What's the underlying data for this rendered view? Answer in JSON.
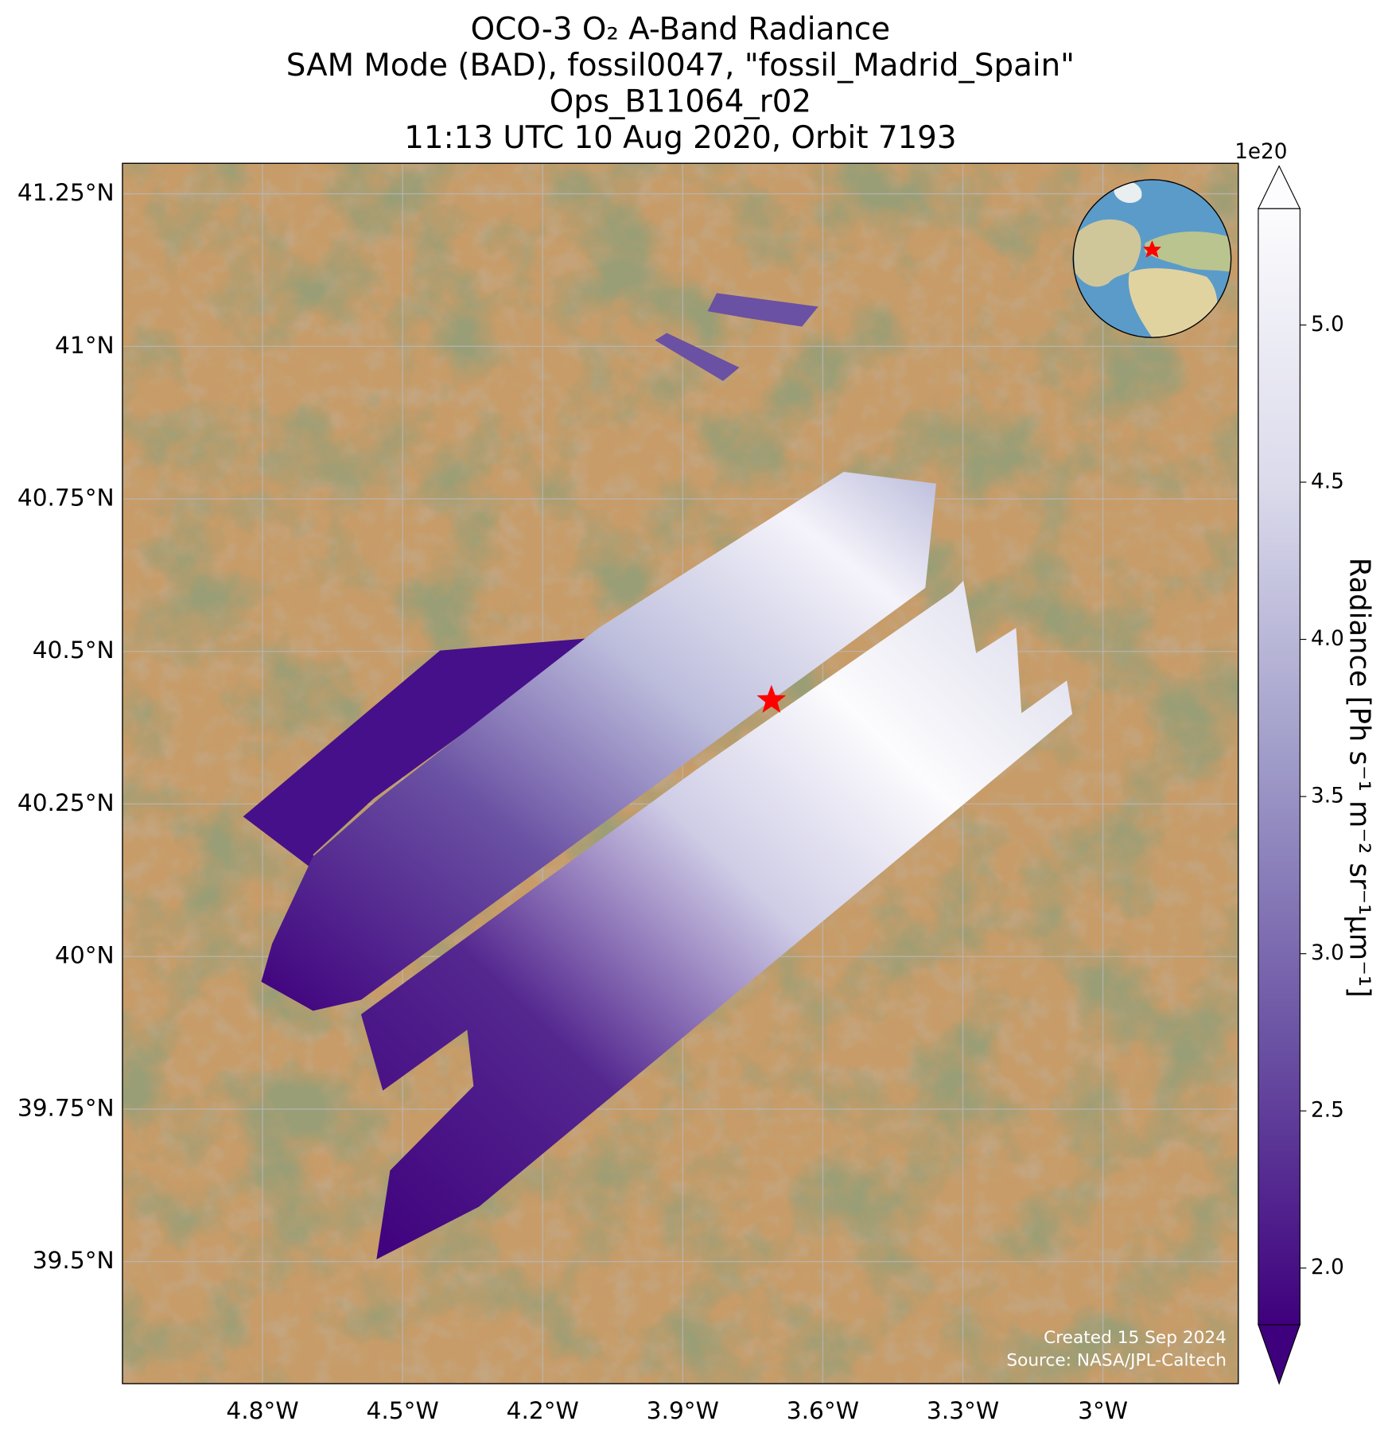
{
  "chart_data": {
    "type": "map",
    "title": [
      "OCO-3 O₂ A-Band Radiance",
      "SAM Mode (BAD), fossil0047, \"fossil_Madrid_Spain\"",
      "Ops_B11064_r02",
      "11:13 UTC 10 Aug 2020, Orbit 7193"
    ],
    "xlim": [
      -5.1,
      -2.71
    ],
    "ylim": [
      39.3,
      41.3
    ],
    "xticks": [
      {
        "value": -4.8,
        "label": "4.8°W"
      },
      {
        "value": -4.5,
        "label": "4.5°W"
      },
      {
        "value": -4.2,
        "label": "4.2°W"
      },
      {
        "value": -3.9,
        "label": "3.9°W"
      },
      {
        "value": -3.6,
        "label": "3.6°W"
      },
      {
        "value": -3.3,
        "label": "3.3°W"
      },
      {
        "value": -3.0,
        "label": "3°W"
      }
    ],
    "yticks": [
      {
        "value": 39.5,
        "label": "39.5°N"
      },
      {
        "value": 39.75,
        "label": "39.75°N"
      },
      {
        "value": 40,
        "label": "40°N"
      },
      {
        "value": 40.25,
        "label": "40.25°N"
      },
      {
        "value": 40.5,
        "label": "40.5°N"
      },
      {
        "value": 40.75,
        "label": "40.75°N"
      },
      {
        "value": 41,
        "label": "41°N"
      },
      {
        "value": 41.25,
        "label": "41.25°N"
      }
    ],
    "grid": true,
    "target": {
      "lon": -3.71,
      "lat": 40.42,
      "color": "#ff0000"
    },
    "colorbar": {
      "label": "Radiance [Ph s⁻¹ m⁻² sr⁻¹μm⁻¹]",
      "exponent": "1e20",
      "lim": [
        1.82,
        5.37
      ],
      "ticks": [
        {
          "value": 2,
          "label": "2.0"
        },
        {
          "value": 2.5,
          "label": "2.5"
        },
        {
          "value": 3,
          "label": "3.0"
        },
        {
          "value": 3.5,
          "label": "3.5"
        },
        {
          "value": 4,
          "label": "4.0"
        },
        {
          "value": 4.5,
          "label": "4.5"
        },
        {
          "value": 5,
          "label": "5.0"
        }
      ]
    },
    "credits": [
      "Created 15 Sep 2024",
      "Source: NASA/JPL-Caltech"
    ]
  }
}
